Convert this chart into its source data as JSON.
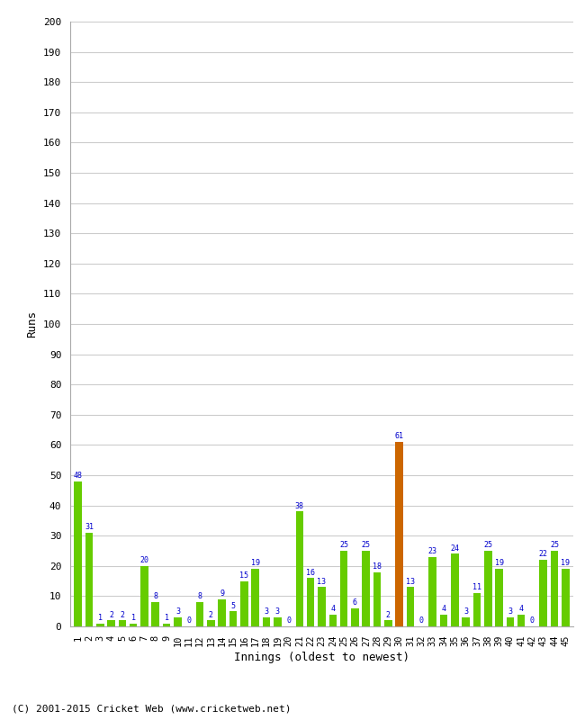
{
  "innings": [
    1,
    2,
    3,
    4,
    5,
    6,
    7,
    8,
    9,
    10,
    11,
    12,
    13,
    14,
    15,
    16,
    17,
    18,
    19,
    20,
    21,
    22,
    23,
    24,
    25,
    26,
    27,
    28,
    29,
    30,
    31,
    32,
    33,
    34,
    35,
    36,
    37,
    38,
    39,
    40,
    41,
    42,
    43,
    44,
    45
  ],
  "values": [
    48,
    31,
    1,
    2,
    2,
    1,
    20,
    8,
    1,
    3,
    0,
    8,
    2,
    9,
    5,
    15,
    19,
    3,
    3,
    0,
    38,
    16,
    13,
    4,
    25,
    6,
    25,
    18,
    2,
    61,
    13,
    0,
    23,
    4,
    24,
    3,
    11,
    25,
    19,
    3,
    4,
    0,
    22,
    25,
    19
  ],
  "highlight_idx": 29,
  "bar_color_normal": "#66cc00",
  "bar_color_highlight": "#cc6600",
  "label_color": "#0000cc",
  "xlabel": "Innings (oldest to newest)",
  "ylabel": "Runs",
  "ylim": [
    0,
    200
  ],
  "yticks": [
    0,
    10,
    20,
    30,
    40,
    50,
    60,
    70,
    80,
    90,
    100,
    110,
    120,
    130,
    140,
    150,
    160,
    170,
    180,
    190,
    200
  ],
  "footer": "(C) 2001-2015 Cricket Web (www.cricketweb.net)",
  "grid_color": "#cccccc",
  "bg_color": "#ffffff"
}
